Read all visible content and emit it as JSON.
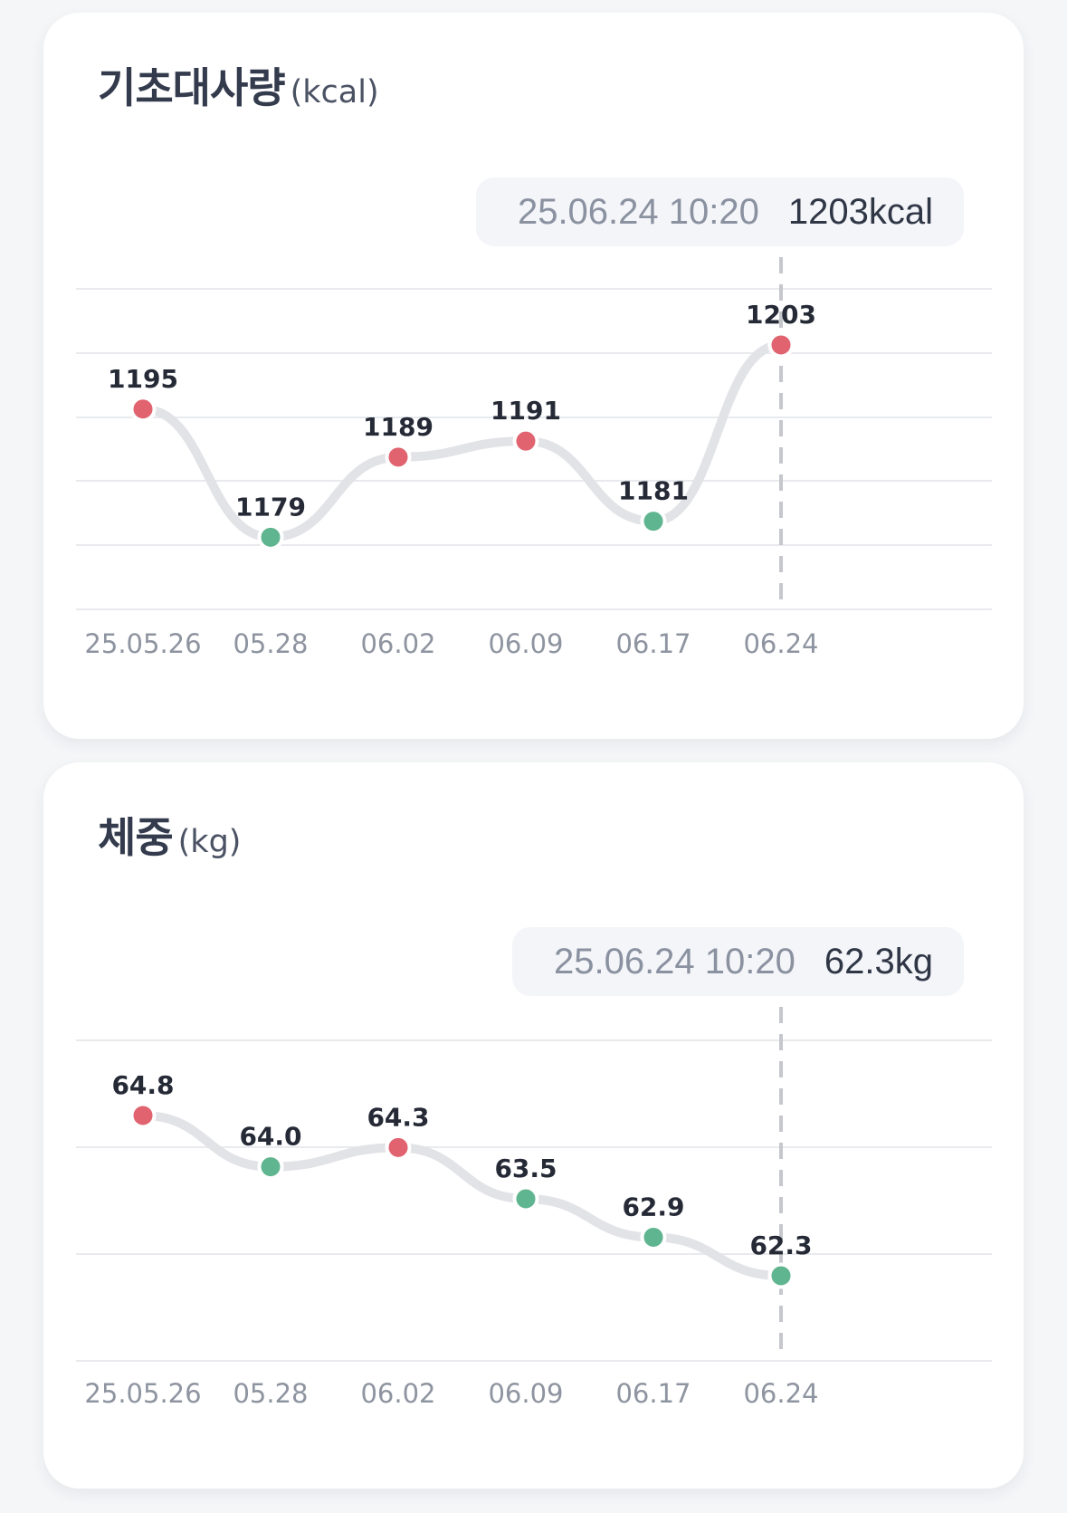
{
  "bmr": {
    "title": "기초대사량",
    "unit": "(kcal)",
    "tooltip": {
      "date": "25.06.24 10:20",
      "value": "1203kcal"
    }
  },
  "weight": {
    "title": "체중",
    "unit": "(kg)",
    "tooltip": {
      "date": "25.06.24 10:20",
      "value": "62.3kg"
    }
  },
  "colors": {
    "increase": "#e0636f",
    "decrease": "#5fb58f",
    "line": "#e2e3e7",
    "grid": "#e9eaee"
  },
  "chart_data": [
    {
      "type": "line",
      "title": "기초대사량 (kcal)",
      "categories": [
        "25.05.26",
        "05.28",
        "06.02",
        "06.09",
        "06.17",
        "06.24"
      ],
      "series": [
        {
          "values": [
            1195,
            1179,
            1189,
            1191,
            1181,
            1203
          ],
          "point_status": [
            "up",
            "down",
            "up",
            "up",
            "down",
            "up"
          ]
        }
      ],
      "ylim": [
        1170,
        1210
      ],
      "grid": true,
      "highlight_index": 5
    },
    {
      "type": "line",
      "title": "체중 (kg)",
      "categories": [
        "25.05.26",
        "05.28",
        "06.02",
        "06.09",
        "06.17",
        "06.24"
      ],
      "series": [
        {
          "values": [
            64.8,
            64.0,
            64.3,
            63.5,
            62.9,
            62.3
          ],
          "point_status": [
            "up",
            "down",
            "up",
            "down",
            "down",
            "down"
          ]
        }
      ],
      "ylim": [
        61.0,
        66.0
      ],
      "grid": true,
      "highlight_index": 5
    }
  ]
}
